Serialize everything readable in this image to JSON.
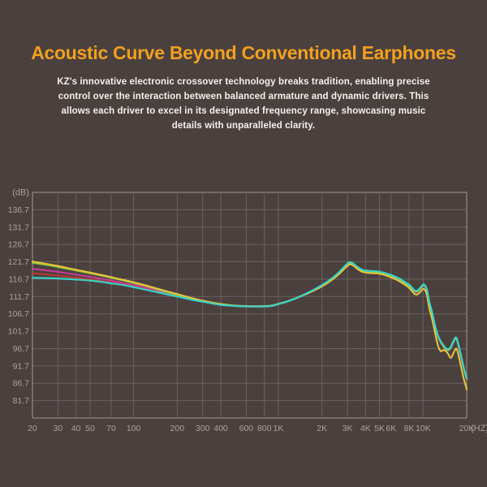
{
  "page": {
    "background_color": "#4a403e"
  },
  "header": {
    "title": "Acoustic Curve Beyond Conventional Earphones",
    "title_color": "#f2a01f",
    "description_color": "#f3f0ed",
    "description_lines": [
      "KZ's innovative electronic crossover technology breaks tradition, enabling precise",
      "control over the interaction between balanced armature and dynamic drivers. This",
      "allows each driver to excel in its designated frequency range, showcasing music",
      "details with unparalleled clarity."
    ]
  },
  "chart_data": {
    "type": "line",
    "title": "",
    "xlabel": "(HZ)",
    "ylabel": "(dB)",
    "x_scale": "log",
    "x_range": [
      20,
      20000
    ],
    "y_range_drawn": [
      76.7,
      141.7
    ],
    "y_tick_step": 5,
    "y_ticks": [
      136.7,
      131.7,
      126.7,
      121.7,
      116.7,
      111.7,
      106.7,
      101.7,
      96.7,
      91.7,
      86.7,
      81.7
    ],
    "x_ticks": [
      {
        "f": 20,
        "label": "20"
      },
      {
        "f": 30,
        "label": "30"
      },
      {
        "f": 40,
        "label": "40"
      },
      {
        "f": 50,
        "label": "50"
      },
      {
        "f": 70,
        "label": "70"
      },
      {
        "f": 100,
        "label": "100"
      },
      {
        "f": 200,
        "label": "200"
      },
      {
        "f": 300,
        "label": "300"
      },
      {
        "f": 400,
        "label": "400"
      },
      {
        "f": 600,
        "label": "600"
      },
      {
        "f": 800,
        "label": "800"
      },
      {
        "f": 1000,
        "label": "1K"
      },
      {
        "f": 2000,
        "label": "2K"
      },
      {
        "f": 3000,
        "label": "3K"
      },
      {
        "f": 4000,
        "label": "4K"
      },
      {
        "f": 5000,
        "label": "5K"
      },
      {
        "f": 6000,
        "label": "6K"
      },
      {
        "f": 8000,
        "label": "8K"
      },
      {
        "f": 10000,
        "label": "10K"
      },
      {
        "f": 20000,
        "label": "20K"
      }
    ],
    "grid": {
      "line_color": "#6b6260",
      "border_color": "#8f8682",
      "label_color": "#aba19b",
      "legend": "none"
    },
    "x": [
      20,
      25,
      30,
      40,
      50,
      60,
      70,
      85,
      100,
      120,
      150,
      200,
      250,
      300,
      400,
      500,
      600,
      700,
      800,
      900,
      1000,
      1200,
      1500,
      2000,
      2500,
      3000,
      3200,
      3500,
      3800,
      4000,
      4300,
      4600,
      5000,
      5400,
      5800,
      6100,
      6600,
      7100,
      7600,
      8100,
      8700,
      9100,
      9600,
      10100,
      10600,
      11000,
      11500,
      12000,
      12600,
      13200,
      14000,
      14800,
      15500,
      16200,
      16900,
      17500,
      18200,
      19000,
      19500,
      20000
    ],
    "series": [
      {
        "name": "red-curve",
        "color": "#bc3736",
        "width": 2.1,
        "values": [
          118.4,
          118.05,
          117.75,
          117.15,
          116.65,
          116.2,
          115.8,
          115.25,
          114.7,
          114.05,
          113.1,
          111.85,
          110.95,
          110.25,
          109.4,
          109.0,
          108.85,
          108.8,
          108.85,
          109.0,
          109.5,
          110.5,
          112.2,
          114.85,
          117.65,
          120.9,
          121.2,
          120.0,
          119.1,
          118.9,
          118.75,
          118.7,
          118.55,
          118.2,
          117.8,
          117.5,
          116.9,
          116.2,
          115.4,
          114.6,
          113.2,
          113.1,
          114.0,
          114.9,
          113.5,
          110.05,
          107.05,
          103.55,
          100.35,
          98.55,
          96.95,
          96.15,
          96.85,
          98.55,
          99.55,
          97.65,
          94.65,
          91.15,
          89.45,
          87.85
        ]
      },
      {
        "name": "magenta-curve",
        "color": "#c43c95",
        "width": 2.1,
        "values": [
          119.7,
          119.2,
          118.8,
          118.0,
          117.4,
          116.8,
          116.3,
          115.6,
          115.0,
          114.3,
          113.3,
          112.0,
          111.0,
          110.3,
          109.4,
          109.0,
          108.85,
          108.8,
          108.85,
          109.0,
          109.5,
          110.5,
          112.15,
          114.8,
          117.6,
          120.85,
          121.15,
          119.95,
          119.05,
          118.85,
          118.7,
          118.65,
          118.5,
          118.15,
          117.75,
          117.45,
          116.85,
          116.15,
          115.35,
          114.55,
          113.15,
          113.05,
          113.95,
          114.85,
          113.45,
          110.0,
          107.0,
          103.5,
          100.3,
          98.5,
          96.9,
          96.1,
          96.8,
          98.5,
          99.5,
          97.6,
          94.6,
          91.1,
          89.4,
          87.8
        ]
      },
      {
        "name": "green-curve",
        "color": "#86c93a",
        "width": 2.1,
        "values": [
          121.4,
          120.8,
          120.2,
          119.2,
          118.4,
          117.7,
          117.1,
          116.3,
          115.6,
          114.8,
          113.6,
          112.2,
          111.1,
          110.4,
          109.45,
          109.05,
          108.9,
          108.85,
          108.9,
          109.05,
          109.55,
          110.55,
          112.25,
          114.9,
          117.7,
          120.95,
          121.25,
          120.05,
          119.15,
          118.95,
          118.8,
          118.75,
          118.6,
          118.25,
          117.85,
          117.55,
          116.95,
          116.25,
          115.45,
          114.65,
          113.25,
          113.15,
          114.05,
          114.95,
          113.55,
          110.15,
          107.15,
          103.65,
          100.45,
          98.65,
          97.05,
          96.25,
          96.95,
          98.65,
          99.65,
          97.75,
          94.75,
          91.25,
          89.55,
          87.95
        ]
      },
      {
        "name": "yellow-curve",
        "color": "#e6c23c",
        "width": 2.1,
        "values": [
          121.8,
          121.1,
          120.5,
          119.4,
          118.6,
          117.9,
          117.3,
          116.5,
          115.8,
          114.95,
          113.8,
          112.4,
          111.3,
          110.5,
          109.55,
          109.1,
          108.95,
          108.9,
          108.95,
          109.1,
          109.6,
          110.55,
          112.1,
          114.6,
          117.4,
          120.5,
          120.9,
          119.7,
          118.8,
          118.6,
          118.45,
          118.4,
          118.25,
          117.9,
          117.45,
          117.1,
          116.45,
          115.7,
          114.9,
          114.0,
          112.5,
          112.3,
          113.1,
          113.9,
          112.3,
          108.6,
          105.4,
          101.9,
          97.9,
          96.0,
          96.3,
          95.3,
          94.0,
          95.4,
          96.7,
          95.0,
          91.8,
          88.3,
          86.6,
          84.9
        ]
      },
      {
        "name": "cyan-curve",
        "color": "#38d3c6",
        "width": 2.2,
        "values": [
          117.1,
          117.0,
          116.9,
          116.6,
          116.3,
          115.9,
          115.5,
          115.0,
          114.4,
          113.7,
          112.8,
          111.7,
          110.8,
          110.2,
          109.3,
          109.0,
          108.85,
          108.8,
          108.85,
          109.0,
          109.5,
          110.5,
          112.2,
          115.0,
          117.9,
          121.2,
          121.5,
          120.3,
          119.4,
          119.2,
          119.05,
          119.0,
          118.85,
          118.5,
          118.1,
          117.8,
          117.2,
          116.5,
          115.7,
          114.9,
          113.5,
          113.4,
          114.3,
          115.2,
          113.8,
          110.4,
          107.4,
          103.9,
          100.7,
          98.9,
          97.3,
          96.5,
          97.2,
          98.9,
          99.9,
          98.0,
          95.0,
          91.5,
          89.8,
          88.2
        ]
      }
    ]
  }
}
